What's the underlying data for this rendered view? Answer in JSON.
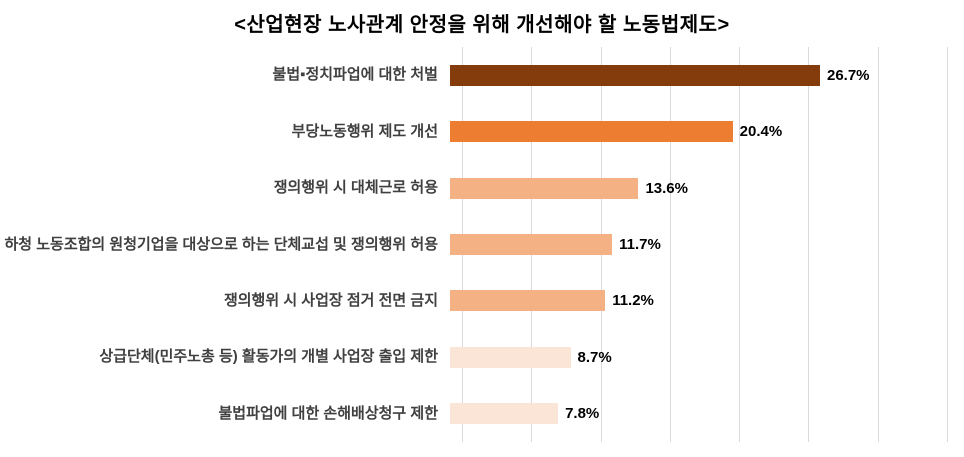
{
  "chart_data": {
    "type": "bar",
    "orientation": "horizontal",
    "title": "<산업현장 노사관계 안정을 위해 개선해야 할 노동법제도>",
    "categories": [
      "불법▪정치파업에 대한 처벌",
      "부당노동행위 제도 개선",
      "쟁의행위 시 대체근로 허용",
      "하청 노동조합의 원청기업을 대상으로 하는 단체교섭 및 쟁의행위 허용",
      "쟁의행위 시 사업장 점거 전면 금지",
      "상급단체(민주노총 등) 활동가의 개별 사업장 출입 제한",
      "불법파업에 대한 손해배상청구 제한"
    ],
    "values": [
      26.7,
      20.4,
      13.6,
      11.7,
      11.2,
      8.7,
      7.8
    ],
    "value_labels": [
      "26.7%",
      "20.4%",
      "13.6%",
      "11.7%",
      "11.2%",
      "8.7%",
      "7.8%"
    ],
    "bar_colors": [
      "#843C0C",
      "#ED7D31",
      "#F4B183",
      "#F4B183",
      "#F4B183",
      "#FBE5D6",
      "#FBE5D6"
    ],
    "xlabel": "",
    "ylabel": "",
    "xlim": [
      0,
      35
    ],
    "gridline_step": 5,
    "grid": true,
    "legend": false
  },
  "colors": {
    "background": "#FFFFFF",
    "gridline": "#D9D9D9",
    "title": "#000000",
    "category_label": "#404040",
    "value_label": "#000000"
  }
}
